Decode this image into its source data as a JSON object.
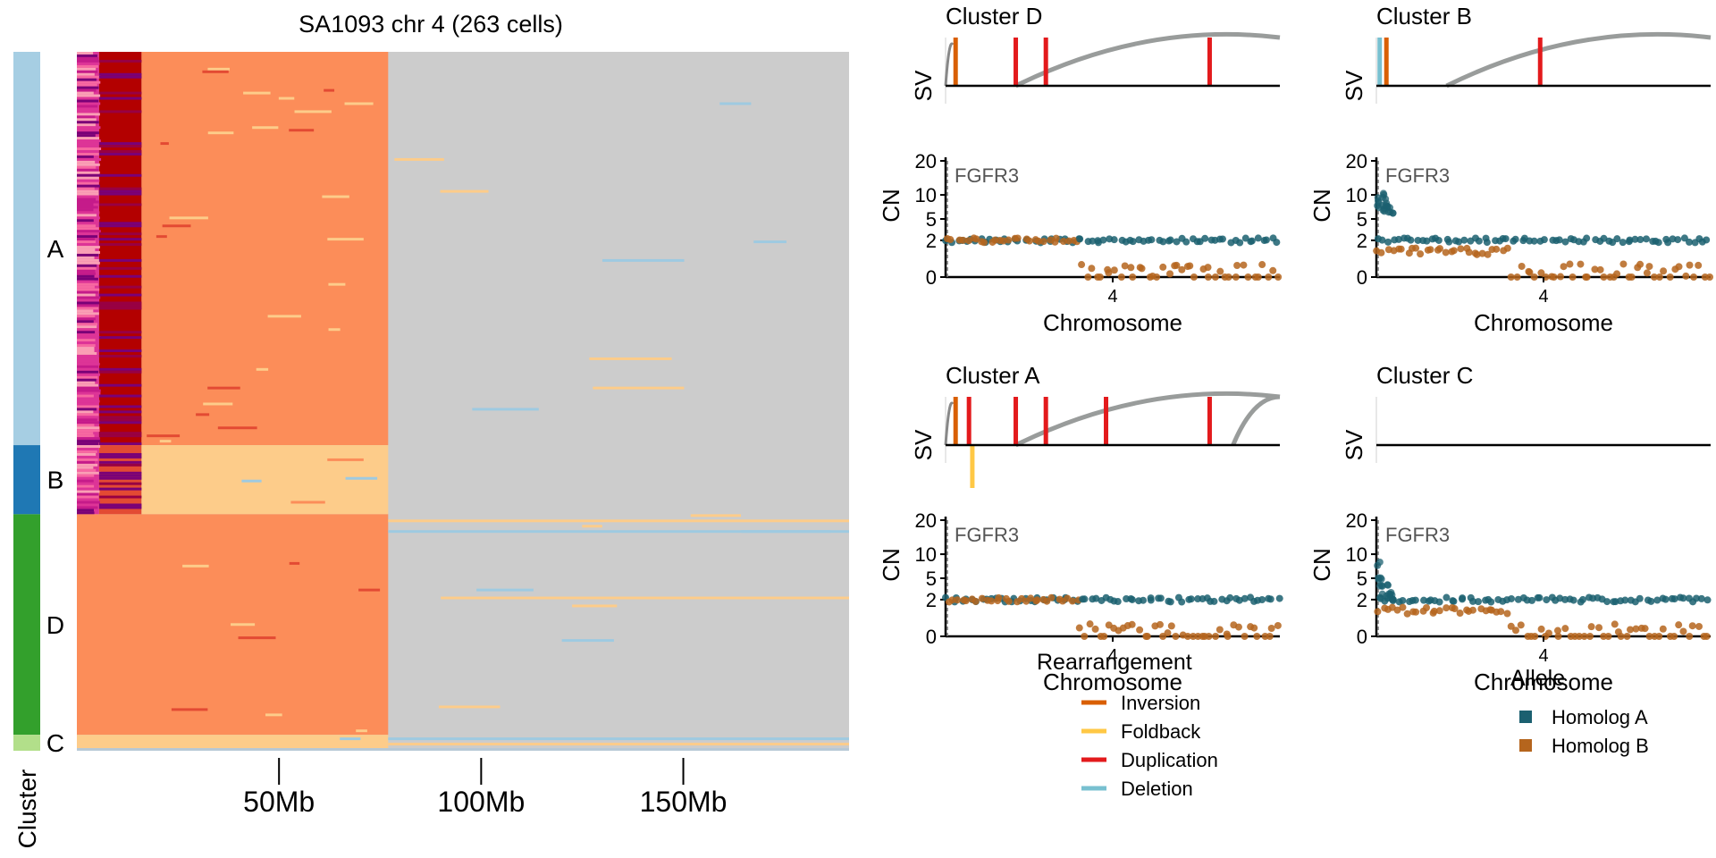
{
  "figure_title": "SA1093 chr 4 (263 cells)",
  "heatmap": {
    "cluster_axis_label": "Cluster",
    "x_ticks": [
      {
        "label": "50Mb",
        "value": 50
      },
      {
        "label": "100Mb",
        "value": 100
      },
      {
        "label": "150Mb",
        "value": 150
      }
    ],
    "clusters": [
      {
        "name": "A",
        "n_cells": 148,
        "color": "#a6cee3"
      },
      {
        "name": "B",
        "n_cells": 26,
        "color": "#1f78b4"
      },
      {
        "name": "D",
        "n_cells": 83,
        "color": "#33a02c"
      },
      {
        "name": "C",
        "n_cells": 6,
        "color": "#b2df8a"
      }
    ],
    "state_colors": {
      "grey": "#cccccc",
      "state2": "#fc8d59",
      "state1": "#fdcc8a",
      "state0": "#9ecae1",
      "state3": "#e34a33",
      "state4": "#b30000",
      "high": "#dd3497",
      "highest": "#7a0177"
    }
  },
  "panel_common": {
    "sv_label": "SV",
    "cn_label": "CN",
    "x_label": "Chromosome",
    "x_tick": "4",
    "cn_ticks": [
      "20",
      "10",
      "5",
      "2",
      "0"
    ],
    "gene_label": "FGFR3"
  },
  "panels": [
    {
      "title": "Cluster D"
    },
    {
      "title": "Cluster B"
    },
    {
      "title": "Cluster A"
    },
    {
      "title": "Cluster C"
    }
  ],
  "legend_rearrangement": {
    "title": "Rearrangement",
    "items": [
      {
        "label": "Inversion",
        "color": "#d95f02"
      },
      {
        "label": "Foldback",
        "color": "#ffc845"
      },
      {
        "label": "Duplication",
        "color": "#e31a1c"
      },
      {
        "label": "Deletion",
        "color": "#78c0d0"
      }
    ]
  },
  "legend_allele": {
    "title": "Allele",
    "items": [
      {
        "label": "Homolog A",
        "color": "#1b6070"
      },
      {
        "label": "Homolog B",
        "color": "#b5651d"
      }
    ]
  },
  "chart_data": [
    {
      "type": "heatmap",
      "title": "SA1093 chr 4 (263 cells)",
      "xlabel": "",
      "ylabel": "Cluster",
      "x_tick_labels": [
        "50Mb",
        "100Mb",
        "150Mb"
      ],
      "xlim_mb": [
        0,
        191
      ],
      "rows_by_cluster": [
        {
          "cluster": "A",
          "cells": 148
        },
        {
          "cluster": "B",
          "cells": 26
        },
        {
          "cluster": "D",
          "cells": 83
        },
        {
          "cluster": "C",
          "cells": 6
        }
      ],
      "segments_mb": [
        {
          "start": 0,
          "end": 5.5,
          "state": "high"
        },
        {
          "start": 5.5,
          "end": 16,
          "state": "state4"
        },
        {
          "start": 16,
          "end": 77,
          "state": "state2"
        },
        {
          "start": 77,
          "end": 191,
          "state": "grey"
        }
      ]
    },
    {
      "type": "line",
      "title": "Cluster D",
      "panels": [
        "SV",
        "CN"
      ],
      "sv_breakpoints": [
        {
          "type": "Inversion",
          "pos": 0.03
        },
        {
          "type": "Duplication",
          "pos": 0.21
        },
        {
          "type": "Duplication",
          "pos": 0.3
        },
        {
          "type": "Duplication",
          "pos": 0.79
        }
      ],
      "cn_segments": [
        {
          "homolog": "A",
          "from": 0.0,
          "to": 0.4,
          "cn": 2
        },
        {
          "homolog": "B",
          "from": 0.0,
          "to": 0.4,
          "cn": 2
        },
        {
          "homolog": "A",
          "from": 0.4,
          "to": 1.0,
          "cn": 2
        },
        {
          "homolog": "B",
          "from": 0.4,
          "to": 1.0,
          "cn": 0
        }
      ],
      "cn_ticks": [
        0,
        2,
        5,
        10,
        20
      ]
    },
    {
      "type": "line",
      "title": "Cluster B",
      "panels": [
        "SV",
        "CN"
      ],
      "sv_breakpoints": [
        {
          "type": "Deletion",
          "pos": 0.01
        },
        {
          "type": "Inversion",
          "pos": 0.03
        },
        {
          "type": "Duplication",
          "pos": 0.49
        }
      ],
      "cn_segments": [
        {
          "homolog": "A",
          "from": 0.0,
          "to": 0.4,
          "cn": 2
        },
        {
          "homolog": "B",
          "from": 0.0,
          "to": 0.4,
          "cn": 1
        },
        {
          "homolog": "A",
          "from": 0.4,
          "to": 1.0,
          "cn": 2
        },
        {
          "homolog": "B",
          "from": 0.4,
          "to": 1.0,
          "cn": 0
        }
      ],
      "cn_ticks": [
        0,
        2,
        5,
        10,
        20
      ]
    },
    {
      "type": "line",
      "title": "Cluster A",
      "panels": [
        "SV",
        "CN"
      ],
      "sv_breakpoints": [
        {
          "type": "Inversion",
          "pos": 0.03
        },
        {
          "type": "Duplication",
          "pos": 0.07
        },
        {
          "type": "Foldback",
          "pos": 0.08
        },
        {
          "type": "Duplication",
          "pos": 0.21
        },
        {
          "type": "Duplication",
          "pos": 0.3
        },
        {
          "type": "Duplication",
          "pos": 0.48
        },
        {
          "type": "Duplication",
          "pos": 0.79
        }
      ],
      "cn_segments": [
        {
          "homolog": "A",
          "from": 0.0,
          "to": 0.4,
          "cn": 2
        },
        {
          "homolog": "B",
          "from": 0.0,
          "to": 0.4,
          "cn": 2
        },
        {
          "homolog": "A",
          "from": 0.4,
          "to": 1.0,
          "cn": 2
        },
        {
          "homolog": "B",
          "from": 0.4,
          "to": 1.0,
          "cn": 0
        }
      ],
      "cn_ticks": [
        0,
        2,
        5,
        10,
        20
      ]
    },
    {
      "type": "line",
      "title": "Cluster C",
      "panels": [
        "SV",
        "CN"
      ],
      "sv_breakpoints": [],
      "cn_segments": [
        {
          "homolog": "A",
          "from": 0.0,
          "to": 0.4,
          "cn": 2
        },
        {
          "homolog": "B",
          "from": 0.0,
          "to": 0.4,
          "cn": 1
        },
        {
          "homolog": "A",
          "from": 0.4,
          "to": 1.0,
          "cn": 2
        },
        {
          "homolog": "B",
          "from": 0.4,
          "to": 1.0,
          "cn": 0
        }
      ],
      "cn_ticks": [
        0,
        2,
        5,
        10,
        20
      ]
    }
  ]
}
